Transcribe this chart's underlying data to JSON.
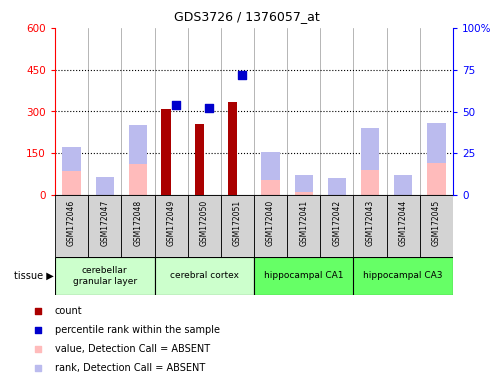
{
  "title": "GDS3726 / 1376057_at",
  "samples": [
    "GSM172046",
    "GSM172047",
    "GSM172048",
    "GSM172049",
    "GSM172050",
    "GSM172051",
    "GSM172040",
    "GSM172041",
    "GSM172042",
    "GSM172043",
    "GSM172044",
    "GSM172045"
  ],
  "count_values": [
    0,
    0,
    0,
    308,
    255,
    335,
    0,
    0,
    0,
    0,
    0,
    0
  ],
  "rank_values": [
    0,
    0,
    0,
    54,
    52,
    72,
    0,
    0,
    0,
    0,
    0,
    0
  ],
  "absent_value_values": [
    85,
    0,
    110,
    0,
    0,
    0,
    55,
    10,
    0,
    90,
    0,
    115
  ],
  "absent_rank_values": [
    29,
    11,
    42,
    0,
    0,
    0,
    26,
    12,
    10,
    40,
    12,
    43
  ],
  "count_present": [
    false,
    false,
    false,
    true,
    true,
    true,
    false,
    false,
    false,
    false,
    false,
    false
  ],
  "rank_present": [
    false,
    false,
    false,
    true,
    true,
    true,
    false,
    false,
    false,
    false,
    false,
    false
  ],
  "value_absent": [
    true,
    false,
    true,
    false,
    false,
    false,
    true,
    true,
    false,
    true,
    false,
    true
  ],
  "rank_absent": [
    true,
    true,
    true,
    false,
    false,
    false,
    true,
    true,
    true,
    true,
    true,
    true
  ],
  "tissue_info": [
    {
      "label": "cerebellar\ngranular layer",
      "start": 0,
      "end": 3,
      "color": "#ccffcc"
    },
    {
      "label": "cerebral cortex",
      "start": 3,
      "end": 6,
      "color": "#ccffcc"
    },
    {
      "label": "hippocampal CA1",
      "start": 6,
      "end": 9,
      "color": "#66ff66"
    },
    {
      "label": "hippocampal CA3",
      "start": 9,
      "end": 12,
      "color": "#66ff66"
    }
  ],
  "ylim_left": [
    0,
    600
  ],
  "ylim_right": [
    0,
    100
  ],
  "yticks_left": [
    0,
    150,
    300,
    450,
    600
  ],
  "yticks_right": [
    0,
    25,
    50,
    75,
    100
  ],
  "bar_color_count": "#aa0000",
  "bar_color_rank": "#0000cc",
  "bar_color_absent_value": "#ffbbbb",
  "bar_color_absent_rank": "#bbbbee",
  "bg_color": "#ffffff",
  "legend_items": [
    {
      "color": "#aa0000",
      "label": "count"
    },
    {
      "color": "#0000cc",
      "label": "percentile rank within the sample"
    },
    {
      "color": "#ffbbbb",
      "label": "value, Detection Call = ABSENT"
    },
    {
      "color": "#bbbbee",
      "label": "rank, Detection Call = ABSENT"
    }
  ]
}
